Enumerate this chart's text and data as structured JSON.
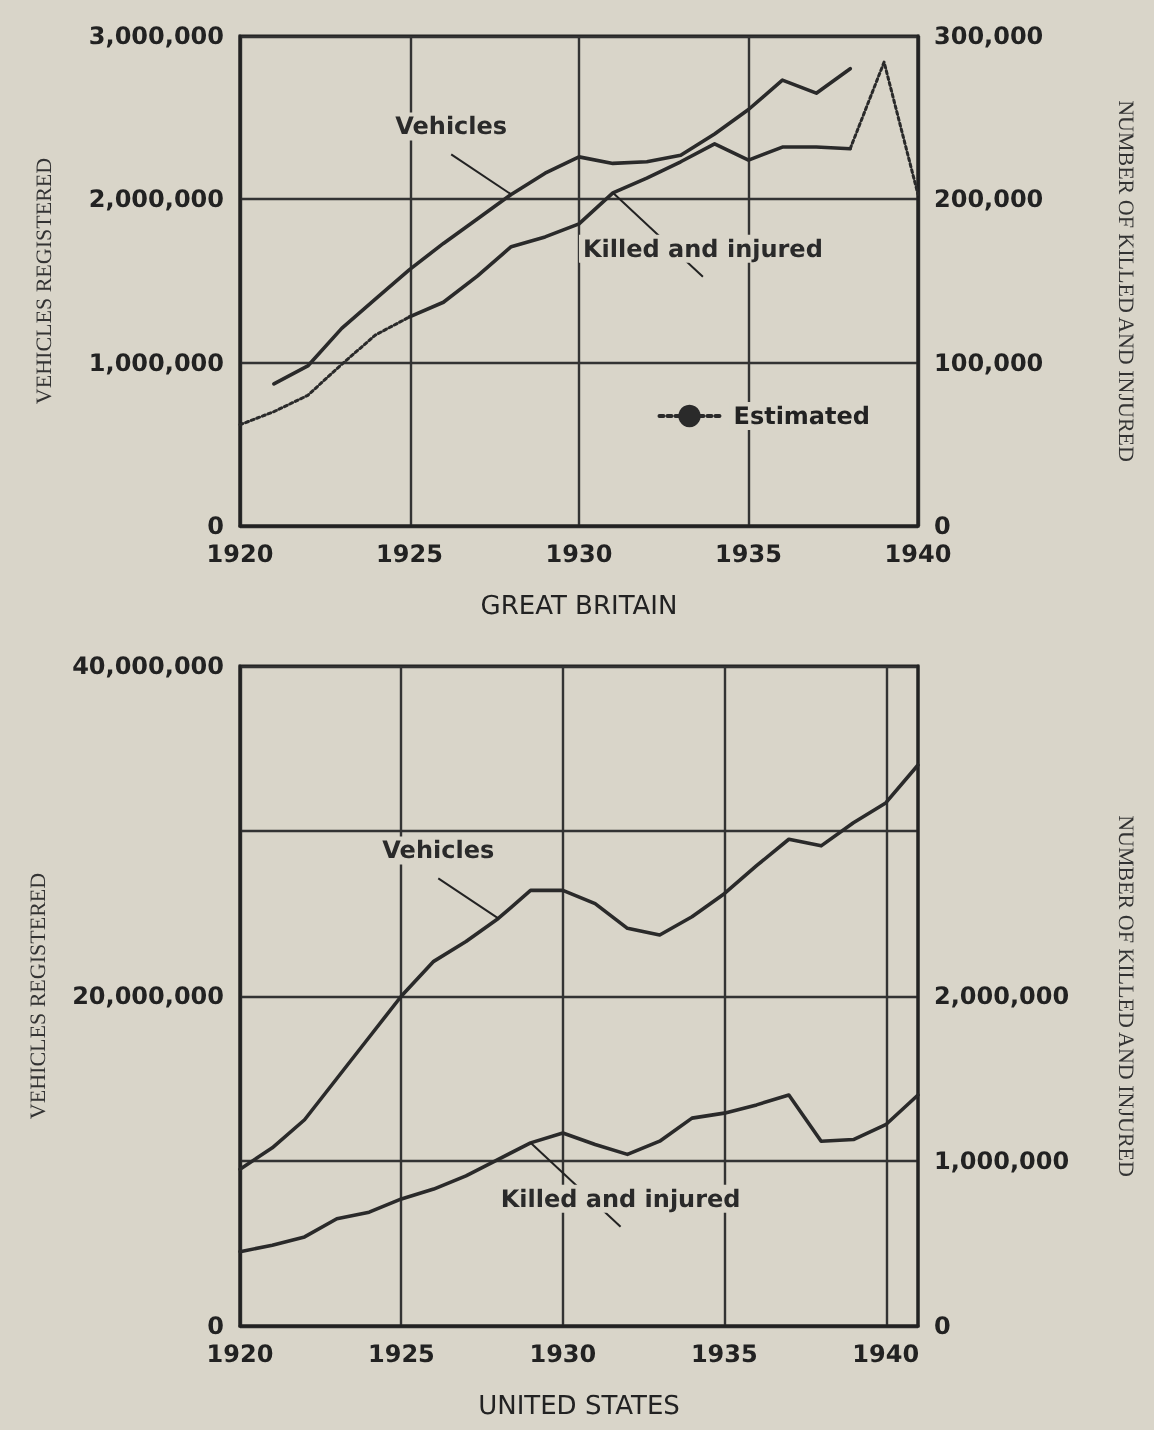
{
  "chart_data": [
    {
      "type": "line",
      "xlabel": "GREAT BRITAIN",
      "ylabel": "VEHICLES REGISTERED",
      "y2label": "NUMBER OF KILLED AND INJURED",
      "x": [
        1920,
        1921,
        1922,
        1923,
        1924,
        1925,
        1926,
        1927,
        1928,
        1929,
        1930,
        1931,
        1932,
        1933,
        1934,
        1935,
        1936,
        1937,
        1938,
        1939,
        1940
      ],
      "series": [
        {
          "name": "Vehicles",
          "color": "#2a2a2a",
          "values": [
            null,
            870000,
            980000,
            1210000,
            1390000,
            1570000,
            1730000,
            1880000,
            2030000,
            2160000,
            2260000,
            2220000,
            2230000,
            2270000,
            2400000,
            2550000,
            2730000,
            2650000,
            2800000,
            null,
            null
          ]
        },
        {
          "name": "Killed and injured",
          "color": "#2a2a2a",
          "axis": "y2",
          "values": [
            null,
            null,
            null,
            null,
            null,
            128000,
            137000,
            153000,
            171000,
            177000,
            185000,
            204000,
            213000,
            223000,
            234000,
            224000,
            232000,
            232000,
            231000,
            null,
            null
          ]
        },
        {
          "name": "Estimated",
          "color": "#2a2a2a",
          "axis": "y2",
          "line_style": "dotted",
          "values": [
            62000,
            70000,
            80000,
            99000,
            117000,
            128000,
            null,
            null,
            null,
            null,
            null,
            null,
            null,
            null,
            null,
            null,
            null,
            null,
            231000,
            284000,
            203000
          ]
        }
      ],
      "xlim": [
        1920,
        1940
      ],
      "xticks": [
        1920,
        1925,
        1930,
        1935,
        1940
      ],
      "ylim": [
        0,
        3000000
      ],
      "yticks": [
        0,
        {
          "value": 1000000,
          "label": "1,000,000"
        },
        {
          "value": 2000000,
          "label": "2,000,000"
        },
        {
          "value": 3000000,
          "label": "3,000,000"
        }
      ],
      "y2lim": [
        0,
        300000
      ],
      "y2ticks": [
        0,
        {
          "value": 100000,
          "label": "100,000"
        },
        {
          "value": 200000,
          "label": "200,000"
        },
        {
          "value": 300000,
          "label": "300,000"
        }
      ],
      "grid": true,
      "legend": "bottom right",
      "marker": "none",
      "line_style": "solid"
    },
    {
      "type": "line",
      "xlabel": "UNITED STATES",
      "ylabel": "VEHICLES REGISTERED",
      "y2label": "NUMBER OF KILLED AND INJURED",
      "x": [
        1920,
        1921,
        1922,
        1923,
        1924,
        1925,
        1926,
        1927,
        1928,
        1929,
        1930,
        1931,
        1932,
        1933,
        1934,
        1935,
        1936,
        1937,
        1938,
        1939,
        1940,
        1941
      ],
      "series": [
        {
          "name": "Vehicles",
          "color": "#2a2a2a",
          "values": [
            9500000,
            10800000,
            12500000,
            15000000,
            17500000,
            20000000,
            22100000,
            23300000,
            24700000,
            26400000,
            26400000,
            25600000,
            24100000,
            23700000,
            24800000,
            26200000,
            27900000,
            29500000,
            29100000,
            30500000,
            31700000,
            34000000
          ]
        },
        {
          "name": "Killed and injured",
          "color": "#2a2a2a",
          "axis": "y2",
          "values": [
            450000,
            490000,
            540000,
            650000,
            690000,
            770000,
            830000,
            910000,
            1010000,
            1110000,
            1170000,
            1100000,
            1040000,
            1120000,
            1260000,
            1290000,
            1340000,
            1400000,
            1120000,
            1130000,
            1220000,
            1400000
          ]
        }
      ],
      "xlim": [
        1920,
        1941
      ],
      "xticks": [
        1920,
        1925,
        1930,
        1935,
        1940
      ],
      "ylim": [
        0,
        40000000
      ],
      "yticks": [
        0,
        {
          "value": 10000000,
          "label": null
        },
        {
          "value": 20000000,
          "label": "20,000,000"
        },
        {
          "value": 30000000,
          "label": null
        },
        {
          "value": 40000000,
          "label": "40,000,000"
        }
      ],
      "y2lim": [
        0,
        4000000
      ],
      "y2ticks": [
        0,
        {
          "value": 1000000,
          "label": "1,000,000"
        },
        {
          "value": 2000000,
          "label": "2,000,000"
        }
      ],
      "grid": true,
      "legend": false,
      "marker": "none",
      "line_style": "solid"
    }
  ]
}
